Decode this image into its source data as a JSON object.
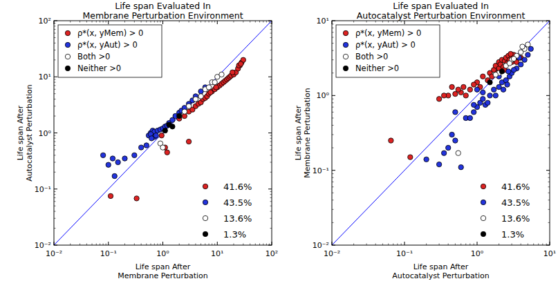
{
  "chart_data": [
    {
      "type": "scatter",
      "title": "Life span Evaluated In\nMembrane Perturbation Environment",
      "x_label": "Life span After\nMembrane Perturbation",
      "y_label": "Life span After\nAutocatalyst Perturbation",
      "log": true,
      "grid": false,
      "legend": "upper left",
      "xlim": [
        0.01,
        100
      ],
      "ylim": [
        0.01,
        100
      ],
      "xticks": [
        {
          "value": 0.01,
          "label": "10⁻²"
        },
        {
          "value": 0.1,
          "label": "10⁻¹"
        },
        {
          "value": 1,
          "label": "10⁰"
        },
        {
          "value": 10,
          "label": "10¹"
        },
        {
          "value": 100,
          "label": "10²"
        }
      ],
      "yticks": [
        {
          "value": 0.01,
          "label": "10⁻²"
        },
        {
          "value": 0.1,
          "label": "10⁻¹"
        },
        {
          "value": 1,
          "label": "10⁰"
        },
        {
          "value": 10,
          "label": "10¹"
        },
        {
          "value": 100,
          "label": "10²"
        }
      ],
      "series": [
        {
          "type": "line",
          "color": "#0000ff",
          "line_style": "solid",
          "x": [
            0.01,
            100
          ],
          "values": [
            0.01,
            100
          ]
        },
        {
          "name": "ρ*(x, yMem) > 0",
          "color": "#dd2222",
          "marker": "circle",
          "x": [
            0.11,
            0.33,
            0.95,
            1.1,
            1.2,
            3,
            2,
            2.5,
            3,
            3.5,
            4,
            4.5,
            5,
            5.5,
            6,
            6.5,
            7,
            8,
            9,
            10,
            11,
            12,
            13,
            14,
            15,
            16,
            17,
            18,
            20,
            22,
            24,
            26,
            28,
            30,
            7.5,
            9.5,
            19,
            25,
            27
          ],
          "values": [
            0.075,
            0.068,
            0.9,
            0.55,
            0.45,
            0.7,
            1.8,
            2,
            2.4,
            2.6,
            3,
            3.3,
            3.5,
            4,
            4.2,
            4.5,
            5,
            5.5,
            6,
            6.5,
            7,
            7.5,
            8,
            8.5,
            9,
            9.5,
            10,
            10.5,
            11,
            12,
            14,
            16,
            18,
            20,
            5.3,
            6.5,
            12,
            16,
            17
          ]
        },
        {
          "name": "ρ*(x, yAut) > 0",
          "color": "#2233dd",
          "marker": "circle",
          "x": [
            0.08,
            0.1,
            0.13,
            0.12,
            0.15,
            0.2,
            0.3,
            0.4,
            0.5,
            0.55,
            0.6,
            0.65,
            0.7,
            0.8,
            0.9,
            1,
            1.1,
            1.3,
            1.5,
            1.7,
            2,
            2.2,
            2.5,
            3,
            3.5,
            4,
            5,
            6,
            0.6,
            0.7,
            0.75,
            1.2,
            0.62
          ],
          "values": [
            0.4,
            0.27,
            0.17,
            0.35,
            0.3,
            0.35,
            0.4,
            0.55,
            0.6,
            0.9,
            1,
            1.1,
            1.05,
            1.1,
            1.15,
            1.2,
            1.3,
            1.5,
            1.7,
            2,
            2.3,
            2.5,
            2.8,
            3.3,
            3.8,
            4.5,
            5.5,
            6.5,
            0.95,
            0.85,
            0.9,
            1.35,
            0.8
          ]
        },
        {
          "name": "Both >0",
          "color": "#ffffff",
          "marker": "circle",
          "x": [
            0.9,
            1.0,
            3,
            4,
            5,
            6,
            8,
            9,
            10,
            12,
            7,
            2.5
          ],
          "values": [
            0.65,
            0.55,
            3,
            4,
            4.5,
            6,
            8,
            8,
            10,
            11,
            6.5,
            2.4
          ]
        },
        {
          "name": "Neither >0",
          "color": "#000000",
          "marker": "circle",
          "x": [
            1.3,
            1.5,
            2,
            1.1
          ],
          "values": [
            1.4,
            1.3,
            2,
            1.1
          ]
        }
      ],
      "annotations": [
        {
          "text": "41.6%",
          "color": "#dd2222"
        },
        {
          "text": "43.5%",
          "color": "#2233dd"
        },
        {
          "text": "13.6%",
          "color": "#ffffff"
        },
        {
          "text": "1.3%",
          "color": "#000000"
        }
      ]
    },
    {
      "type": "scatter",
      "title": "Life span Evaluated In\nAutocatalyst Perturbation Environment",
      "x_label": "Life span After\nAutocatalyst Perturbation",
      "y_label": "Life span After\nMembrane Perturbation",
      "log": true,
      "grid": false,
      "legend": "upper left",
      "xlim": [
        0.01,
        10
      ],
      "ylim": [
        0.01,
        10
      ],
      "xticks": [
        {
          "value": 0.01,
          "label": "10⁻²"
        },
        {
          "value": 0.1,
          "label": "10⁻¹"
        },
        {
          "value": 1,
          "label": "10⁰"
        },
        {
          "value": 10,
          "label": "10¹"
        }
      ],
      "yticks": [
        {
          "value": 0.01,
          "label": "10⁻²"
        },
        {
          "value": 0.1,
          "label": "10⁻¹"
        },
        {
          "value": 1,
          "label": "10⁰"
        },
        {
          "value": 10,
          "label": "10¹"
        }
      ],
      "series": [
        {
          "type": "line",
          "color": "#0000ff",
          "line_style": "solid",
          "x": [
            0.01,
            10
          ],
          "values": [
            0.01,
            10
          ]
        },
        {
          "name": "ρ*(x, yMem) > 0",
          "color": "#dd2222",
          "marker": "circle",
          "x": [
            1.5,
            1.7,
            1.8,
            2,
            2,
            2.1,
            2.2,
            2.3,
            2.4,
            2.5,
            2.6,
            2.7,
            2.8,
            3,
            3,
            3.2,
            3.3,
            3.5,
            1.9,
            2.4,
            1.2,
            1.0,
            0.8,
            0.6,
            0.5,
            0.4,
            0.35,
            0.3,
            0.65,
            0.7,
            0.9,
            1.4,
            3.5,
            4,
            2.9,
            0.065,
            0.12,
            0.45,
            0.55,
            1.1,
            1.6
          ],
          "values": [
            2,
            2.2,
            2.5,
            2.3,
            2.8,
            2.6,
            3,
            2.4,
            2.9,
            3.2,
            2.7,
            3.4,
            3,
            3.2,
            2.8,
            3.5,
            3,
            3.3,
            2,
            2.2,
            1.8,
            1.5,
            1.2,
            1.1,
            1.05,
            1.0,
            1.0,
            0.9,
            1.3,
            1.0,
            1.4,
            1.6,
            2.8,
            3.2,
            3.6,
            0.25,
            0.15,
            1.3,
            1.2,
            1.3,
            1.8
          ]
        },
        {
          "name": "ρ*(x, yAut) > 0",
          "color": "#2233dd",
          "marker": "circle",
          "x": [
            0.2,
            0.3,
            0.35,
            0.4,
            0.45,
            0.5,
            0.6,
            0.5,
            0.7,
            0.8,
            0.9,
            1,
            1.1,
            1.2,
            1.3,
            1.5,
            1.7,
            2,
            2.2,
            2.5,
            2.8,
            3,
            3.5,
            4,
            4.5,
            5,
            5.5,
            1.8,
            2.3,
            2.6,
            3.2,
            1.4,
            0.9,
            1,
            1.2,
            2,
            2.7,
            3.8
          ],
          "values": [
            0.14,
            0.12,
            0.17,
            0.2,
            0.3,
            0.25,
            0.11,
            0.6,
            0.5,
            0.5,
            0.6,
            0.7,
            0.8,
            0.9,
            0.75,
            1,
            1.2,
            1.3,
            1.5,
            1.6,
            1.8,
            2,
            2.3,
            2.6,
            3,
            3.5,
            4.2,
            1.0,
            1.2,
            1.4,
            2.2,
            0.8,
            0.75,
            1.2,
            1.1,
            1.8,
            2.1,
            3.2
          ]
        },
        {
          "name": "Both >0",
          "color": "#ffffff",
          "marker": "circle",
          "x": [
            0.55,
            2,
            2.5,
            3,
            3.5,
            4,
            4.5,
            5,
            2.8,
            3.2,
            1.8,
            4.2
          ],
          "values": [
            0.17,
            2,
            2.5,
            3,
            3.4,
            3.8,
            4.2,
            4.8,
            2.7,
            3.1,
            1.9,
            4.5
          ]
        },
        {
          "name": "Neither >0",
          "color": "#000000",
          "marker": "circle",
          "x": [
            1.5,
            2.2
          ],
          "values": [
            1.5,
            2.1
          ]
        }
      ],
      "annotations": [
        {
          "text": "41.6%",
          "color": "#dd2222"
        },
        {
          "text": "43.5%",
          "color": "#2233dd"
        },
        {
          "text": "13.6%",
          "color": "#ffffff"
        },
        {
          "text": "1.3%",
          "color": "#000000"
        }
      ]
    }
  ]
}
